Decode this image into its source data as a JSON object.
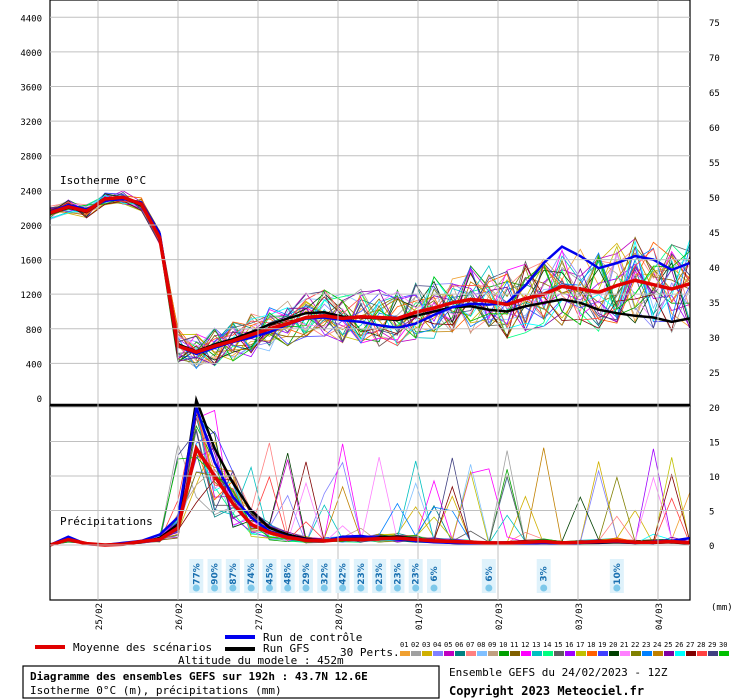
{
  "chart_data": {
    "type": "line",
    "x_dates": [
      "25/02",
      "26/02",
      "27/02",
      "28/02",
      "01/03",
      "02/03",
      "03/03",
      "04/03"
    ],
    "upper_panel": {
      "label": "Isotherme 0°C",
      "y_left_ticks": [
        0,
        400,
        800,
        1200,
        1600,
        2000,
        2400,
        2800,
        3200,
        3600,
        4000,
        4400
      ],
      "y_right_ticks": [
        25,
        30,
        35,
        40,
        45,
        50,
        55,
        60,
        65,
        70,
        75
      ],
      "ylim": [
        0,
        4600
      ],
      "series": [
        {
          "name": "Moyenne des scénarios",
          "color": "#e00000",
          "values": [
            2140,
            2210,
            2160,
            2300,
            2320,
            2240,
            1850,
            600,
            530,
            600,
            660,
            730,
            800,
            860,
            930,
            950,
            920,
            940,
            930,
            920,
            990,
            1040,
            1100,
            1140,
            1120,
            1080,
            1150,
            1200,
            1290,
            1260,
            1220,
            1300,
            1360,
            1310,
            1260,
            1320
          ]
        },
        {
          "name": "Run de contrôle",
          "color": "#0000ee",
          "values": [
            2150,
            2230,
            2180,
            2280,
            2300,
            2260,
            1900,
            600,
            510,
            580,
            650,
            700,
            760,
            850,
            920,
            930,
            900,
            880,
            840,
            810,
            860,
            960,
            1050,
            1090,
            1080,
            1100,
            1300,
            1560,
            1750,
            1640,
            1500,
            1560,
            1640,
            1600,
            1480,
            1560
          ]
        },
        {
          "name": "Run GFS",
          "color": "#000000",
          "values": [
            2130,
            2200,
            2150,
            2290,
            2310,
            2230,
            1880,
            620,
            540,
            620,
            680,
            760,
            850,
            920,
            980,
            990,
            940,
            930,
            920,
            900,
            950,
            1000,
            1050,
            1060,
            1020,
            1000,
            1060,
            1100,
            1140,
            1100,
            1020,
            980,
            950,
            930,
            880,
            920
          ]
        }
      ]
    },
    "lower_panel": {
      "label": "Précipitations",
      "y_ticks": [
        0,
        5,
        10,
        15,
        20
      ],
      "ylim": [
        0,
        20
      ],
      "series": [
        {
          "name": "Moyenne des scénarios",
          "color": "#e00000",
          "values": [
            0,
            0.8,
            0.2,
            0,
            0.1,
            0.5,
            0.8,
            2.5,
            14,
            10,
            6,
            3,
            1.8,
            1.1,
            0.7,
            0.6,
            0.8,
            0.8,
            0.9,
            1.0,
            0.8,
            0.6,
            0.5,
            0.4,
            0.3,
            0.3,
            0.4,
            0.5,
            0.3,
            0.4,
            0.5,
            0.6,
            0.4,
            0.4,
            0.5,
            0.3
          ]
        },
        {
          "name": "Run de contrôle",
          "color": "#0000ee",
          "values": [
            0,
            1.2,
            0.1,
            0,
            0.3,
            0.6,
            1.5,
            4,
            20,
            12,
            7,
            4,
            2,
            1.2,
            0.8,
            0.6,
            1.2,
            1.3,
            1.0,
            0.8,
            0.6,
            0.4,
            0.3,
            0.2,
            0.2,
            0.1,
            0.2,
            0.3,
            0.2,
            0.3,
            0.4,
            0.5,
            0.3,
            0.5,
            0.6,
            1.0
          ]
        },
        {
          "name": "Run GFS",
          "color": "#000000",
          "values": [
            0,
            0.9,
            0.2,
            0,
            0.2,
            0.4,
            1.0,
            3,
            21,
            14,
            9,
            5,
            2.5,
            1.5,
            0.9,
            0.6,
            0.9,
            0.9,
            1.1,
            1.2,
            0.9,
            0.5,
            0.3,
            0.2,
            0.2,
            0.2,
            0.2,
            0.3,
            0.2,
            0.3,
            0.3,
            0.4,
            0.3,
            0.3,
            0.4,
            0.2
          ]
        }
      ]
    },
    "snow_labels": [
      {
        "x_index": 8,
        "text": "77%"
      },
      {
        "x_index": 9,
        "text": "90%"
      },
      {
        "x_index": 10,
        "text": "87%"
      },
      {
        "x_index": 11,
        "text": "74%"
      },
      {
        "x_index": 12,
        "text": "45%"
      },
      {
        "x_index": 13,
        "text": "48%"
      },
      {
        "x_index": 14,
        "text": "29%"
      },
      {
        "x_index": 15,
        "text": "32%"
      },
      {
        "x_index": 16,
        "text": "42%"
      },
      {
        "x_index": 17,
        "text": "23%"
      },
      {
        "x_index": 18,
        "text": "23%"
      },
      {
        "x_index": 19,
        "text": "23%"
      },
      {
        "x_index": 20,
        "text": "23%"
      },
      {
        "x_index": 21,
        "text": "6%"
      },
      {
        "x_index": 24,
        "text": "6%"
      },
      {
        "x_index": 27,
        "text": "3%"
      },
      {
        "x_index": 31,
        "text": "10%"
      }
    ],
    "mm_label": "(mm)",
    "member_labels": [
      "01",
      "02",
      "03",
      "04",
      "05",
      "06",
      "07",
      "08",
      "09",
      "10",
      "11",
      "12",
      "13",
      "14",
      "15",
      "16",
      "17",
      "18",
      "19",
      "20",
      "21",
      "22",
      "23",
      "24",
      "25",
      "26",
      "27",
      "28",
      "29",
      "30"
    ],
    "member_colors": [
      "#f0a030",
      "#a0a0a0",
      "#d0b000",
      "#8080ff",
      "#c000c0",
      "#008080",
      "#ff8080",
      "#80c0ff",
      "#c0a080",
      "#00a000",
      "#806000",
      "#ff00ff",
      "#00c0c0",
      "#00ff80",
      "#606060",
      "#a000ff",
      "#c0c000",
      "#ff6000",
      "#4040ff",
      "#004000",
      "#ff80ff",
      "#808000",
      "#0080ff",
      "#c08000",
      "#8000a0",
      "#00ffff",
      "#800000",
      "#ff4040",
      "#404080",
      "#00c000"
    ]
  },
  "legend": {
    "mean": "Moyenne des scénarios",
    "control": "Run de contrôle",
    "gfs": "Run GFS",
    "perts": "30 Perts.",
    "altitude": "Altitude du modele : 452m"
  },
  "footer": {
    "title": "Diagramme des ensembles GEFS sur 192h : 43.7N 12.6E",
    "subtitle": "Isotherme 0°C (m), précipitations (mm)",
    "ensemble": "Ensemble GEFS du 24/02/2023 - 12Z",
    "copyright": "Copyright 2023 Meteociel.fr"
  },
  "colors": {
    "mean": "#e00000",
    "control": "#0000ee",
    "gfs": "#000000",
    "snow": "#7ec8ea"
  }
}
